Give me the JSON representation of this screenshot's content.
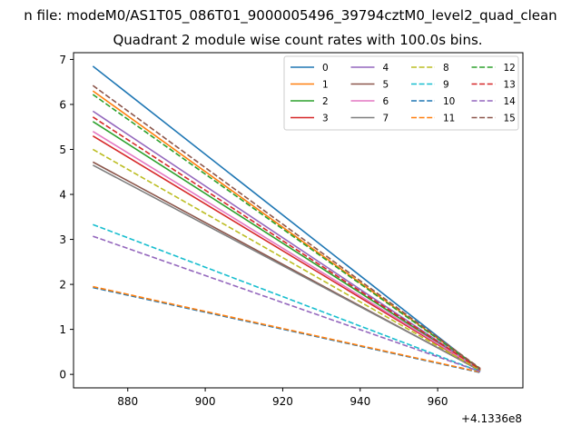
{
  "suptitle": "n file: modeM0/AS1T05_086T01_9000005496_39794cztM0_level2_quad_clean",
  "chart_data": {
    "type": "line",
    "title": "Quadrant 2 module wise count rates with 100.0s bins.",
    "xlabel": "",
    "ylabel": "",
    "x_offset_label": "+4.1336e8",
    "x": [
      871,
      971
    ],
    "xlim": [
      866,
      982
    ],
    "ylim": [
      -0.3,
      7.15
    ],
    "xticks": [
      880,
      900,
      920,
      940,
      960
    ],
    "yticks": [
      0,
      1,
      2,
      3,
      4,
      5,
      6,
      7
    ],
    "grid": false,
    "legend_position": "top-right",
    "legend_columns": 4,
    "series": [
      {
        "name": "0",
        "color": "#1f77b4",
        "dash": "solid",
        "values": [
          6.85,
          0.1
        ]
      },
      {
        "name": "1",
        "color": "#ff7f0e",
        "dash": "solid",
        "values": [
          6.3,
          0.12
        ]
      },
      {
        "name": "2",
        "color": "#2ca02c",
        "dash": "solid",
        "values": [
          5.62,
          0.1
        ]
      },
      {
        "name": "3",
        "color": "#d62728",
        "dash": "solid",
        "values": [
          5.3,
          0.09
        ]
      },
      {
        "name": "4",
        "color": "#9467bd",
        "dash": "solid",
        "values": [
          5.85,
          0.11
        ]
      },
      {
        "name": "5",
        "color": "#8c564b",
        "dash": "solid",
        "values": [
          4.72,
          0.08
        ]
      },
      {
        "name": "6",
        "color": "#e377c2",
        "dash": "solid",
        "values": [
          5.4,
          0.1
        ]
      },
      {
        "name": "7",
        "color": "#7f7f7f",
        "dash": "solid",
        "values": [
          4.65,
          0.09
        ]
      },
      {
        "name": "8",
        "color": "#bcbd22",
        "dash": "dashed",
        "values": [
          5.0,
          0.09
        ]
      },
      {
        "name": "9",
        "color": "#17becf",
        "dash": "dashed",
        "values": [
          3.33,
          0.06
        ]
      },
      {
        "name": "10",
        "color": "#1f77b4",
        "dash": "dashed",
        "values": [
          1.93,
          0.04
        ]
      },
      {
        "name": "11",
        "color": "#ff7f0e",
        "dash": "dashed",
        "values": [
          1.95,
          0.05
        ]
      },
      {
        "name": "12",
        "color": "#2ca02c",
        "dash": "dashed",
        "values": [
          6.22,
          0.12
        ]
      },
      {
        "name": "13",
        "color": "#d62728",
        "dash": "dashed",
        "values": [
          5.72,
          0.11
        ]
      },
      {
        "name": "14",
        "color": "#9467bd",
        "dash": "dashed",
        "values": [
          3.07,
          0.06
        ]
      },
      {
        "name": "15",
        "color": "#8c564b",
        "dash": "dashed",
        "values": [
          6.42,
          0.13
        ]
      }
    ]
  }
}
